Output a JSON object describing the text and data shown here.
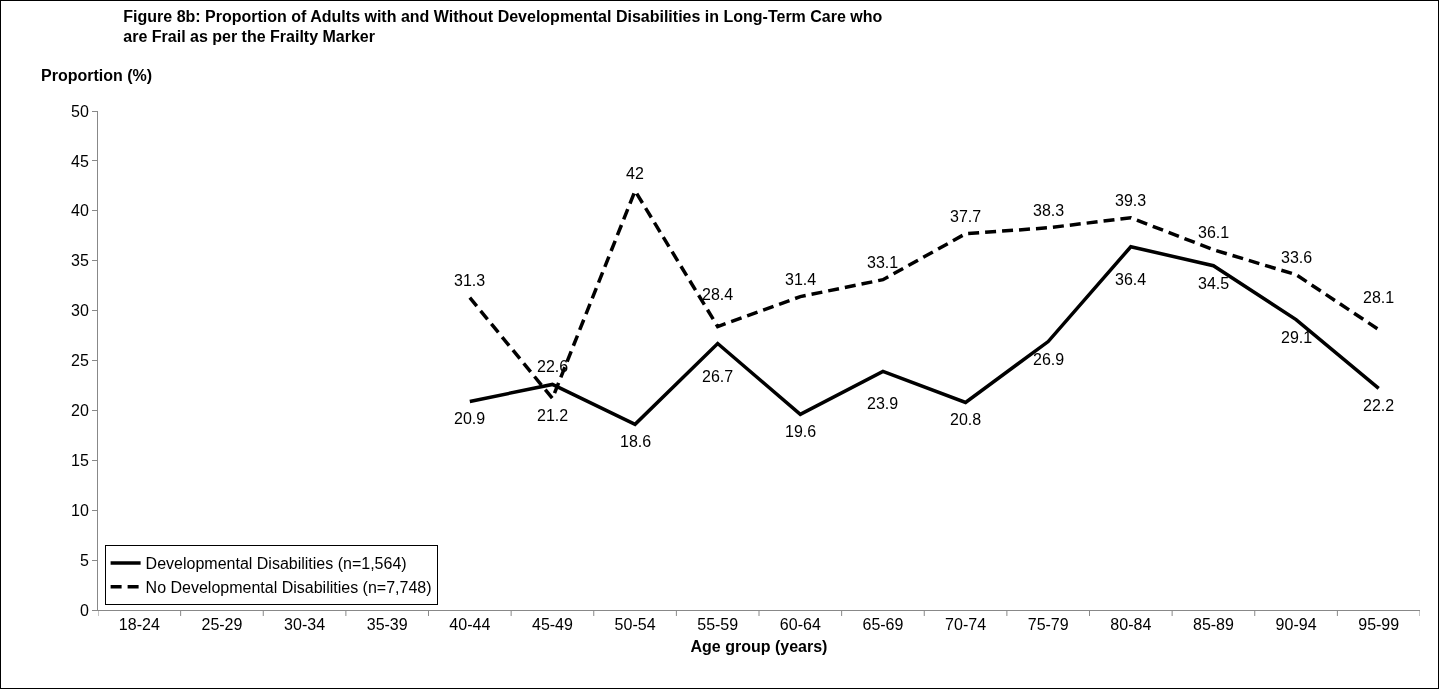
{
  "chart_data": {
    "type": "line",
    "title": "Figure 8b: Proportion of Adults with and Without Developmental Disabilities in Long-Term Care who are Frail as per the Frailty Marker",
    "xlabel": "Age group (years)",
    "ylabel": "Proportion (%)",
    "categories": [
      "18-24",
      "25-29",
      "30-34",
      "35-39",
      "40-44",
      "45-49",
      "50-54",
      "55-59",
      "60-64",
      "65-69",
      "70-74",
      "75-79",
      "80-84",
      "85-89",
      "90-94",
      "95-99"
    ],
    "series": [
      {
        "name": "Developmental Disabilities (n=1,564)",
        "color": "#000000",
        "line_style": "solid",
        "values": [
          null,
          null,
          null,
          null,
          20.9,
          22.6,
          18.6,
          26.7,
          19.6,
          23.9,
          20.8,
          26.9,
          36.4,
          34.5,
          29.1,
          22.2
        ]
      },
      {
        "name": "No Developmental Disabilities (n=7,748)",
        "color": "#000000",
        "line_style": "dashed",
        "values": [
          null,
          null,
          null,
          null,
          31.3,
          21.2,
          42,
          28.4,
          31.4,
          33.1,
          37.7,
          38.3,
          39.3,
          36.1,
          33.6,
          28.1
        ]
      }
    ],
    "ylim": [
      0,
      50
    ],
    "yticks": [
      0,
      5,
      10,
      15,
      20,
      25,
      30,
      35,
      40,
      45,
      50
    ],
    "grid": false,
    "legend": "bottom left",
    "marker": "none",
    "data_labels": true
  }
}
